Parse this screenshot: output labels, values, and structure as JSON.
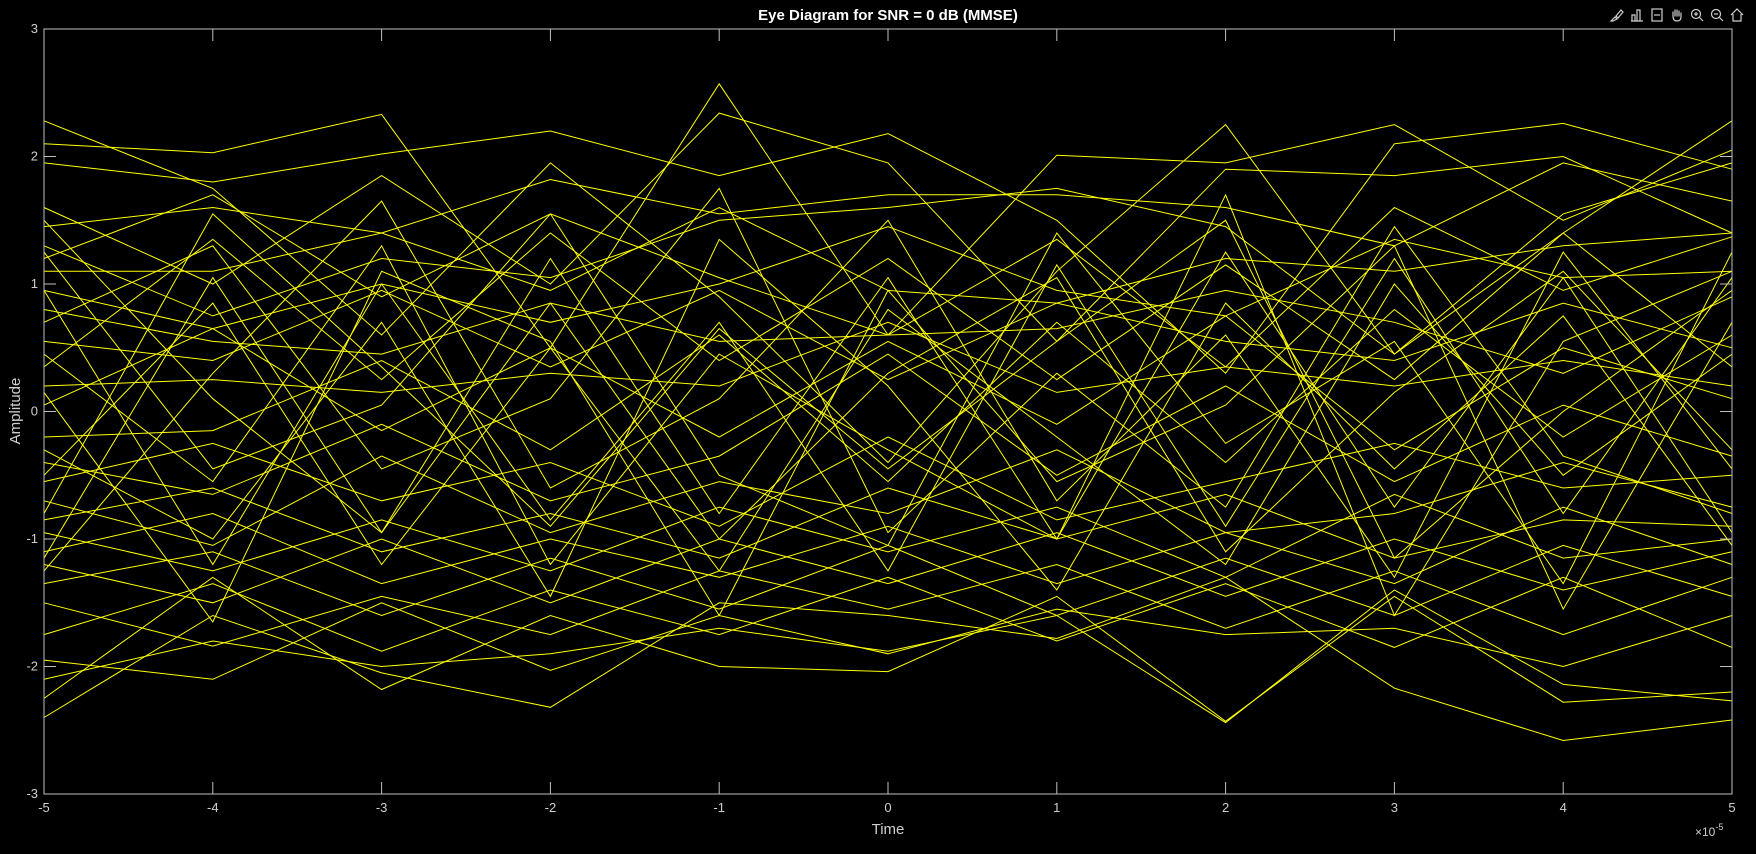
{
  "toolbar": {
    "icons": [
      "brush-icon",
      "data-tips-icon",
      "restore-view-icon",
      "pan-hand-icon",
      "zoom-in-icon",
      "zoom-out-icon",
      "home-icon"
    ]
  },
  "colors": {
    "background": "#000000",
    "trace": "#ffff00",
    "axes": "#bfbfbf"
  },
  "chart_data": {
    "type": "line",
    "title": "Eye Diagram for SNR = 0 dB (MMSE)",
    "xlabel": "Time",
    "ylabel": "Amplitude",
    "x_exponent_label": "×10",
    "x_exponent_power": "-5",
    "xlim": [
      -5e-05,
      5e-05
    ],
    "ylim": [
      -3,
      3
    ],
    "xticks": [
      -5e-05,
      -4e-05,
      -3e-05,
      -2e-05,
      -1e-05,
      0,
      1e-05,
      2e-05,
      3e-05,
      4e-05,
      5e-05
    ],
    "xtick_labels": [
      "-5",
      "-4",
      "-3",
      "-2",
      "-1",
      "0",
      "1",
      "2",
      "3",
      "4",
      "5"
    ],
    "yticks": [
      -3,
      -2,
      -1,
      0,
      1,
      2,
      3
    ],
    "ytick_labels": [
      "-3",
      "-2",
      "-1",
      "0",
      "1",
      "2",
      "3"
    ],
    "grid": false,
    "x": [
      -5e-05,
      -4e-05,
      -3e-05,
      -2e-05,
      -1e-05,
      0,
      1e-05,
      2e-05,
      3e-05,
      4e-05,
      5e-05
    ],
    "series": [
      {
        "values": [
          2.28,
          1.75,
          0.6,
          1.95,
          0.9,
          -0.4,
          1.1,
          2.25,
          0.45,
          1.4,
          2.28
        ]
      },
      {
        "values": [
          2.1,
          2.03,
          2.33,
          0.5,
          2.57,
          0.6,
          2.01,
          1.95,
          2.25,
          1.5,
          2.05
        ]
      },
      {
        "values": [
          1.95,
          1.8,
          2.02,
          2.2,
          1.85,
          2.18,
          1.5,
          0.3,
          2.1,
          2.26,
          1.9
        ]
      },
      {
        "values": [
          1.6,
          1.0,
          1.85,
          1.0,
          2.34,
          1.95,
          0.55,
          1.9,
          1.85,
          2.0,
          1.4
        ]
      },
      {
        "values": [
          1.45,
          1.6,
          1.4,
          1.82,
          1.55,
          1.7,
          1.7,
          1.6,
          1.3,
          1.95,
          1.65
        ]
      },
      {
        "values": [
          1.3,
          0.75,
          1.2,
          1.05,
          1.5,
          1.6,
          1.75,
          1.45,
          0.45,
          1.55,
          1.95
        ]
      },
      {
        "values": [
          1.2,
          1.7,
          0.9,
          1.55,
          1.05,
          0.6,
          1.35,
          0.35,
          1.6,
          0.95,
          1.37
        ]
      },
      {
        "values": [
          1.1,
          1.1,
          1.4,
          0.95,
          1.6,
          0.95,
          0.85,
          1.2,
          1.1,
          1.3,
          1.4
        ]
      },
      {
        "values": [
          0.95,
          0.65,
          1.0,
          0.7,
          1.0,
          1.45,
          0.95,
          0.75,
          1.35,
          1.05,
          1.1
        ]
      },
      {
        "values": [
          0.8,
          0.55,
          0.45,
          0.85,
          0.55,
          0.6,
          0.65,
          0.95,
          0.7,
          0.3,
          0.9
        ]
      },
      {
        "values": [
          0.55,
          0.4,
          0.95,
          0.35,
          0.95,
          0.25,
          0.85,
          0.55,
          0.4,
          0.85,
          0.5
        ]
      },
      {
        "values": [
          0.35,
          1.35,
          0.25,
          1.4,
          0.4,
          1.2,
          0.25,
          1.15,
          0.25,
          1.4,
          0.35
        ]
      },
      {
        "values": [
          0.2,
          0.25,
          0.15,
          0.3,
          0.2,
          0.7,
          0.15,
          0.35,
          0.2,
          0.4,
          0.2
        ]
      },
      {
        "values": [
          0.05,
          0.65,
          -0.15,
          0.5,
          -0.2,
          0.55,
          -0.1,
          0.75,
          -0.3,
          0.5,
          0.1
        ]
      },
      {
        "values": [
          -0.2,
          -0.15,
          0.4,
          -0.3,
          0.6,
          -0.55,
          0.7,
          -0.4,
          0.8,
          -0.2,
          0.6
        ]
      },
      {
        "values": [
          -0.4,
          -0.65,
          -0.1,
          -0.7,
          -0.35,
          0.45,
          -0.5,
          0.2,
          -0.55,
          0.05,
          -0.35
        ]
      },
      {
        "values": [
          -0.55,
          -0.25,
          -0.7,
          -0.4,
          -0.9,
          -0.2,
          -0.85,
          -0.55,
          -0.25,
          -0.6,
          -0.5
        ]
      },
      {
        "values": [
          -0.7,
          -1.05,
          -0.35,
          -0.95,
          -0.55,
          -0.8,
          -0.3,
          -0.95,
          -0.8,
          -0.4,
          -0.75
        ]
      },
      {
        "values": [
          -0.85,
          -0.6,
          -1.1,
          -0.8,
          -1.15,
          -0.6,
          -1.0,
          -0.65,
          -1.15,
          -0.85,
          -0.9
        ]
      },
      {
        "values": [
          -0.95,
          -1.25,
          -0.85,
          -1.25,
          -0.75,
          -1.1,
          -0.75,
          -1.3,
          -0.65,
          -1.15,
          -1.0
        ]
      },
      {
        "values": [
          -1.1,
          -0.8,
          -1.35,
          -1.0,
          -1.3,
          -0.9,
          -1.35,
          -0.95,
          -1.35,
          -0.75,
          -1.2
        ]
      },
      {
        "values": [
          -1.2,
          -1.5,
          -1.0,
          -1.5,
          -1.0,
          -1.35,
          -0.95,
          -1.45,
          -1.0,
          -1.4,
          -1.1
        ]
      },
      {
        "values": [
          -1.35,
          -1.1,
          -1.6,
          -1.15,
          -1.55,
          -1.05,
          -1.6,
          -1.15,
          -1.6,
          -1.05,
          -1.45
        ]
      },
      {
        "values": [
          -1.5,
          -1.84,
          -1.45,
          -1.75,
          -1.25,
          -1.55,
          -1.2,
          -1.7,
          -1.25,
          -1.75,
          -1.3
        ]
      },
      {
        "values": [
          -1.75,
          -1.35,
          -1.88,
          -1.4,
          -1.75,
          -1.3,
          -1.8,
          -1.35,
          -1.85,
          -1.3,
          -1.85
        ]
      },
      {
        "values": [
          -1.95,
          -2.1,
          -1.5,
          -2.03,
          -1.6,
          -1.9,
          -1.55,
          -1.75,
          -1.7,
          -2.0,
          -1.6
        ]
      },
      {
        "values": [
          -2.25,
          -1.3,
          -2.18,
          -1.6,
          -2.0,
          -2.04,
          -1.45,
          -2.43,
          -1.45,
          -2.28,
          -2.2
        ]
      },
      {
        "values": [
          -2.4,
          -1.6,
          -2.05,
          -2.32,
          -1.5,
          -1.6,
          -1.78,
          -1.3,
          -2.17,
          -2.58,
          -2.42
        ]
      },
      {
        "values": [
          -2.1,
          -1.8,
          -2.0,
          -1.9,
          -1.7,
          -1.88,
          -1.6,
          -2.44,
          -1.4,
          -2.14,
          -2.27
        ]
      },
      {
        "values": [
          0.95,
          -1.2,
          1.0,
          -0.85,
          0.7,
          -1.25,
          1.15,
          -0.9,
          1.2,
          -0.8,
          1.05
        ]
      },
      {
        "values": [
          -1.15,
          1.05,
          -0.95,
          1.2,
          -0.8,
          1.05,
          -1.0,
          1.25,
          -0.75,
          1.05,
          -0.95
        ]
      },
      {
        "values": [
          0.45,
          -0.55,
          1.3,
          -1.2,
          0.45,
          -0.3,
          -1.0,
          1.7,
          -1.6,
          0.55,
          1.1
        ]
      },
      {
        "values": [
          -0.5,
          0.85,
          -1.2,
          0.5,
          -1.25,
          0.8,
          -0.2,
          -1.2,
          1.0,
          -0.5,
          0.45
        ]
      },
      {
        "values": [
          1.25,
          -0.45,
          0.05,
          1.55,
          -0.5,
          -1.05,
          1.4,
          -0.25,
          0.55,
          -1.35,
          1.25
        ]
      },
      {
        "values": [
          -1.25,
          0.3,
          1.65,
          -0.6,
          0.1,
          1.5,
          -0.7,
          0.6,
          -1.3,
          1.25,
          -0.45
        ]
      },
      {
        "values": [
          0.7,
          1.3,
          -0.45,
          0.1,
          1.75,
          -0.95,
          0.3,
          -0.75,
          1.45,
          -0.35,
          -0.8
        ]
      },
      {
        "values": [
          -0.3,
          -1.0,
          0.7,
          -1.45,
          1.35,
          0.2,
          -1.4,
          0.85,
          -0.45,
          0.75,
          -1.05
        ]
      },
      {
        "values": [
          1.5,
          0.1,
          -0.95,
          0.85,
          -1.0,
          0.3,
          1.05,
          -1.1,
          0.15,
          1.1,
          -0.3
        ]
      },
      {
        "values": [
          -0.8,
          1.55,
          0.35,
          -0.9,
          0.65,
          -0.45,
          0.55,
          1.5,
          -1.15,
          0.0,
          0.95
        ]
      },
      {
        "values": [
          0.15,
          -1.65,
          1.1,
          0.55,
          -1.6,
          0.95,
          -0.55,
          0.05,
          1.3,
          -1.55,
          0.7
        ]
      }
    ]
  }
}
